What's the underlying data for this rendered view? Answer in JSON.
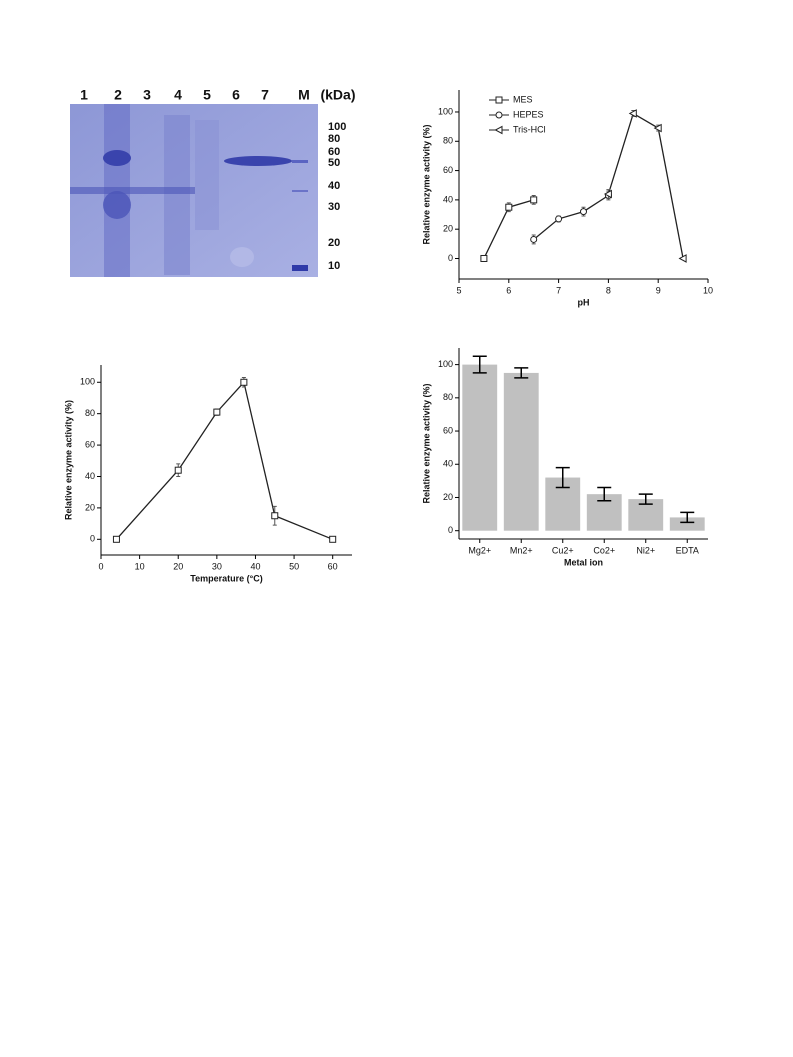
{
  "gel": {
    "lanes": [
      "1",
      "2",
      "3",
      "4",
      "5",
      "6",
      "7",
      "M",
      "(kDa)"
    ],
    "markers": [
      100,
      80,
      60,
      50,
      40,
      30,
      20,
      10
    ]
  },
  "chart_data": [
    {
      "type": "line",
      "x_label": "pH",
      "y_label": "Relative enzyme activity (%)",
      "xlim": [
        5,
        10
      ],
      "xticks": [
        5,
        6,
        7,
        8,
        9,
        10
      ],
      "ylim": [
        -14,
        115
      ],
      "yticks": [
        0,
        20,
        40,
        60,
        80,
        100
      ],
      "legend": "upper left",
      "series": [
        {
          "name": "MES",
          "color": "#222222",
          "marker": "square",
          "x": [
            5.5,
            6,
            6.5
          ],
          "values": [
            0,
            35,
            40
          ],
          "errors": [
            0,
            3,
            3
          ]
        },
        {
          "name": "HEPES",
          "color": "#222222",
          "marker": "circle",
          "x": [
            6.5,
            7,
            7.5,
            8
          ],
          "values": [
            13,
            27,
            32,
            43
          ],
          "errors": [
            3,
            2,
            3,
            3
          ]
        },
        {
          "name": "Tris-HCl",
          "color": "#222222",
          "marker": "triangle-left",
          "x": [
            8,
            8.5,
            9,
            9.5
          ],
          "values": [
            44,
            99,
            89,
            0
          ],
          "errors": [
            3,
            2,
            2,
            0
          ]
        }
      ]
    },
    {
      "type": "line",
      "x_label": "Temperature (°C)",
      "y_label": "Relative enzyme activity (%)",
      "xlim": [
        0,
        65
      ],
      "xticks": [
        0,
        10,
        20,
        30,
        40,
        50,
        60
      ],
      "ylim": [
        -10,
        111
      ],
      "yticks": [
        0,
        20,
        40,
        60,
        80,
        100
      ],
      "series": [
        {
          "color": "#222222",
          "marker": "square",
          "x": [
            4,
            20,
            30,
            37,
            45,
            60
          ],
          "values": [
            0,
            44,
            81,
            100,
            15,
            0
          ],
          "errors": [
            0,
            4,
            2,
            3,
            6,
            0
          ]
        }
      ]
    },
    {
      "type": "bar",
      "x_label": "Metal ion",
      "y_label": "Relative enzyme activity (%)",
      "categories": [
        "Mg2+",
        "Mn2+",
        "Cu2+",
        "Co2+",
        "Ni2+",
        "EDTA"
      ],
      "values": [
        100,
        95,
        32,
        22,
        19,
        8
      ],
      "errors": [
        5,
        3,
        6,
        4,
        3,
        3
      ],
      "color": "#c0c0c0",
      "ylim": [
        -5,
        110
      ],
      "yticks": [
        0,
        20,
        40,
        60,
        80,
        100
      ]
    }
  ]
}
